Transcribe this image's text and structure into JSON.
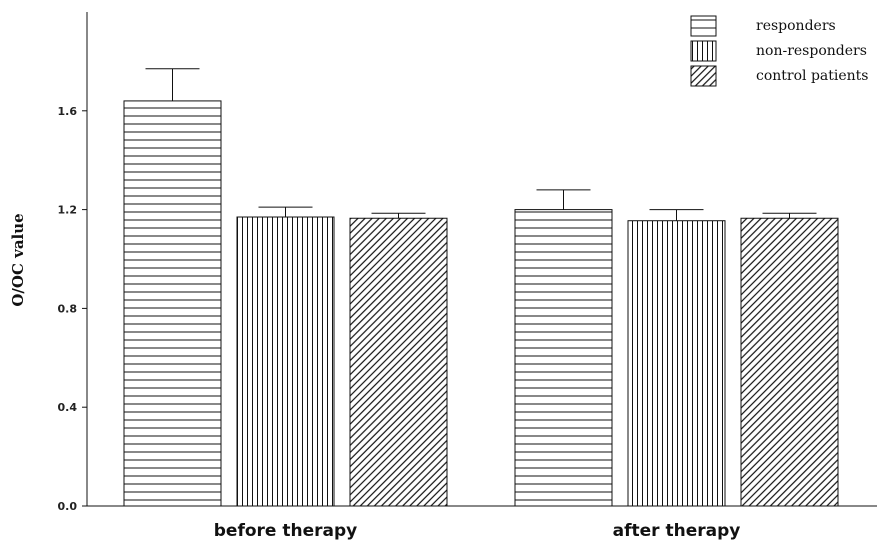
{
  "chart_data": {
    "type": "bar",
    "title": "",
    "xlabel": "",
    "ylabel": "O/OC value",
    "categories": [
      "before therapy",
      "after therapy"
    ],
    "series": [
      {
        "name": "responders",
        "values": [
          1.64,
          1.2
        ],
        "error": [
          0.13,
          0.08
        ],
        "pattern": "horizontal"
      },
      {
        "name": "non-responders",
        "values": [
          1.17,
          1.155
        ],
        "error": [
          0.04,
          0.045
        ],
        "pattern": "vertical"
      },
      {
        "name": "control patients",
        "values": [
          1.165,
          1.165
        ],
        "error": [
          0.02,
          0.02
        ],
        "pattern": "diagonal"
      }
    ],
    "ylim": [
      0,
      2.0
    ],
    "yticks": [
      "0.0",
      "0.4",
      "0.8",
      "1.2",
      "1.6"
    ],
    "ytick_values": [
      0.0,
      0.4,
      0.8,
      1.2,
      1.6
    ],
    "grid": false,
    "legend_position": "top-right"
  }
}
